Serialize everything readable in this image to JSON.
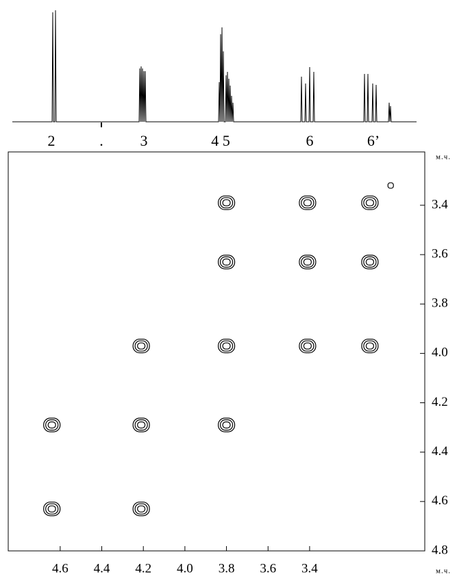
{
  "chart_data": {
    "type": "contour",
    "peak_labels": [
      "2",
      ".",
      "3",
      "4 5",
      "6",
      "6’"
    ],
    "x_label": "м.ч.",
    "y_label": "м.ч.",
    "xlim": [
      4.85,
      2.846
    ],
    "ylim": [
      3.184,
      4.8
    ],
    "xticks": [
      4.6,
      4.4,
      4.2,
      {
        "value": 4,
        "label": "4.0"
      },
      3.8,
      3.6,
      3.4
    ],
    "yticks": [
      3.4,
      3.6,
      3.8,
      {
        "value": 4,
        "label": "4.0"
      },
      4.2,
      4.4,
      4.6,
      4.8
    ],
    "color": "#000000",
    "x": [
      3.8,
      3.41,
      3.11,
      3.01,
      3.8,
      3.41,
      3.11,
      4.21,
      3.8,
      3.41,
      3.11,
      4.64,
      4.21,
      3.8,
      4.64,
      4.21
    ],
    "values": [
      3.39,
      3.39,
      3.39,
      3.32,
      3.63,
      3.63,
      3.63,
      3.97,
      3.97,
      3.97,
      3.97,
      4.29,
      4.29,
      4.29,
      4.63,
      4.63
    ]
  }
}
